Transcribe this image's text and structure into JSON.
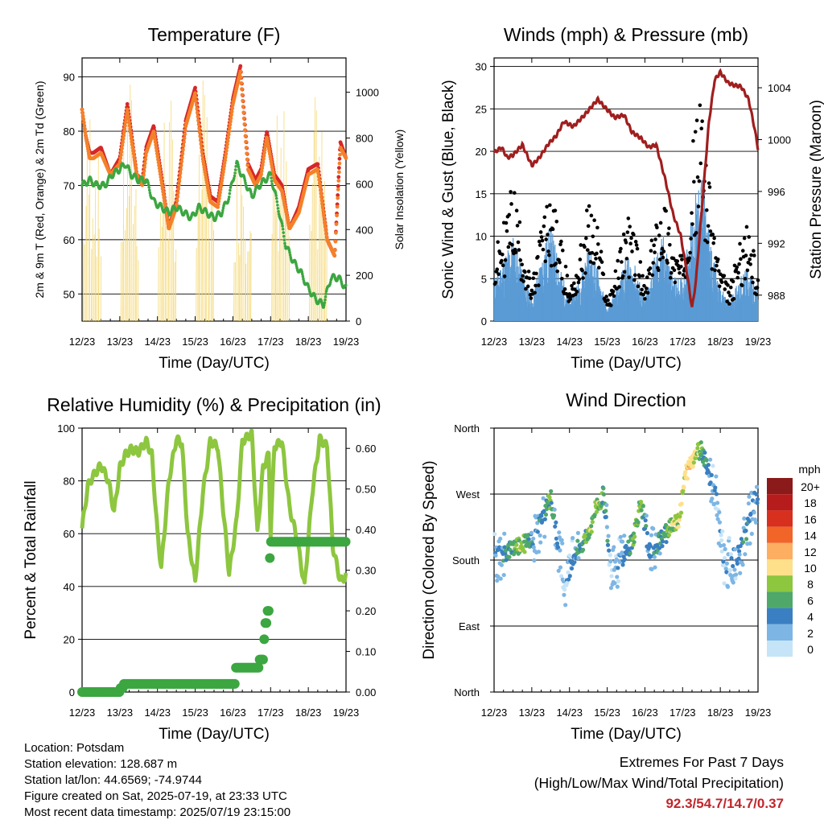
{
  "chart_data": [
    {
      "type": "line",
      "title": "Temperature (F)",
      "xlabel": "Time (Day/UTC)",
      "ylabel": "2m & 9m T (Red, Orange) & 2m Td (Green)",
      "ylabel_right": "Solar Insolation (Yellow)",
      "xticks": [
        "12/23",
        "13/23",
        "14/23",
        "15/23",
        "16/23",
        "17/23",
        "18/23",
        "19/23"
      ],
      "ylim": [
        45,
        93.5
      ],
      "yticks": [
        50,
        60,
        70,
        80,
        90
      ],
      "ylim_right": [
        0,
        1150
      ],
      "yticks_right": [
        0,
        200,
        400,
        600,
        800,
        1000
      ],
      "grid": true,
      "series": [
        {
          "color": "#d62728",
          "marker": "dots",
          "x": [
            0,
            0.1,
            0.2,
            0.3,
            0.5,
            0.75,
            1.0,
            1.2,
            1.3,
            1.45,
            1.6,
            1.7,
            1.9,
            2.1,
            2.3,
            2.5,
            2.75,
            3.0,
            3.2,
            3.4,
            3.6,
            3.8,
            4.0,
            4.2,
            4.4,
            4.6,
            4.75,
            4.9,
            5.1,
            5.3,
            5.5,
            5.75,
            6.0,
            6.25,
            6.5,
            6.7,
            6.85,
            7.0
          ],
          "values": [
            84,
            79,
            76,
            76,
            77,
            72,
            75,
            85,
            80,
            72,
            71,
            77,
            81,
            72,
            62,
            67,
            82,
            88,
            76,
            68,
            67,
            76,
            86,
            92,
            74,
            71,
            73,
            80,
            72,
            70,
            62,
            66,
            73,
            74,
            60,
            57,
            78,
            75
          ]
        },
        {
          "color": "#f4812a",
          "marker": "dots",
          "x": [
            0,
            0.1,
            0.2,
            0.3,
            0.5,
            0.75,
            1.0,
            1.2,
            1.3,
            1.45,
            1.6,
            1.7,
            1.9,
            2.1,
            2.3,
            2.5,
            2.75,
            3.0,
            3.2,
            3.4,
            3.6,
            3.8,
            4.0,
            4.2,
            4.4,
            4.6,
            4.75,
            4.9,
            5.1,
            5.3,
            5.5,
            5.75,
            6.0,
            6.25,
            6.5,
            6.7,
            6.85,
            7.0
          ],
          "values": [
            84,
            79,
            75,
            75,
            76,
            72,
            74,
            84,
            79,
            72,
            70,
            76,
            80,
            71,
            62,
            66,
            81,
            87,
            75,
            67,
            66,
            75,
            85,
            91,
            73,
            70,
            72,
            79,
            71,
            69,
            62,
            65,
            72,
            73,
            60,
            57,
            77,
            75
          ]
        },
        {
          "color": "#3ca641",
          "marker": "dots",
          "x": [
            0,
            0.2,
            0.4,
            0.6,
            0.8,
            1.0,
            1.15,
            1.3,
            1.5,
            1.7,
            1.9,
            2.1,
            2.3,
            2.5,
            2.7,
            2.9,
            3.1,
            3.3,
            3.5,
            3.7,
            3.9,
            4.1,
            4.3,
            4.5,
            4.7,
            5.0,
            5.2,
            5.4,
            5.6,
            5.8,
            6.0,
            6.2,
            6.4,
            6.6,
            6.8,
            7.0
          ],
          "values": [
            70,
            71,
            70,
            70,
            72,
            73,
            74,
            72,
            71,
            71,
            67,
            66,
            65,
            66,
            65,
            64,
            66,
            65,
            64,
            65,
            68,
            74,
            71,
            68,
            70,
            72,
            66,
            59,
            56,
            54,
            51,
            49,
            48,
            53,
            53,
            51
          ]
        }
      ]
    },
    {
      "type": "scatter",
      "title": "Winds (mph) & Pressure (mb)",
      "xlabel": "Time (Day/UTC)",
      "ylabel": "Sonic Wind & Gust (Blue, Black)",
      "ylabel_right": "Station Pressure (Maroon)",
      "xticks": [
        "12/23",
        "13/23",
        "14/23",
        "15/23",
        "16/23",
        "17/23",
        "18/23",
        "19/23"
      ],
      "ylim": [
        0,
        31
      ],
      "yticks": [
        0,
        5,
        10,
        15,
        20,
        25,
        30
      ],
      "ylim_right": [
        986.0,
        1006.3
      ],
      "yticks_right": [
        988,
        992,
        996,
        1000,
        1004
      ],
      "grid": true,
      "series": [
        {
          "color": "#5b9bd5",
          "marker": "bars",
          "x": [
            0,
            0.25,
            0.5,
            0.75,
            1.0,
            1.25,
            1.5,
            1.75,
            2.0,
            2.25,
            2.5,
            2.75,
            3.0,
            3.25,
            3.5,
            3.75,
            4.0,
            4.25,
            4.5,
            4.75,
            5.0,
            5.25,
            5.5,
            5.75,
            6.0,
            6.25,
            6.5,
            6.75,
            7.0
          ],
          "values": [
            4,
            6,
            8,
            5,
            2,
            6,
            9,
            5,
            2,
            4,
            7,
            5,
            1,
            3,
            6,
            5,
            2,
            6,
            8,
            4,
            4,
            10,
            14,
            7,
            3,
            2,
            4,
            5,
            3
          ]
        },
        {
          "color": "#000000",
          "marker": "dots",
          "x": [
            0,
            0.25,
            0.5,
            0.75,
            1.0,
            1.25,
            1.5,
            1.75,
            2.0,
            2.25,
            2.5,
            2.75,
            3.0,
            3.25,
            3.5,
            3.75,
            4.0,
            4.25,
            4.5,
            4.75,
            5.0,
            5.25,
            5.5,
            5.75,
            6.0,
            6.25,
            6.5,
            6.75,
            7.0
          ],
          "values": [
            6,
            9,
            13,
            8,
            3,
            9,
            12,
            8,
            3,
            6,
            11,
            9,
            2,
            5,
            10,
            8,
            3,
            9,
            12,
            7,
            6,
            16,
            21,
            11,
            5,
            3,
            7,
            9,
            4
          ]
        },
        {
          "color": "#a01e1e",
          "marker": "line",
          "axis": "right",
          "x": [
            0,
            0.2,
            0.35,
            0.5,
            0.75,
            1.0,
            1.2,
            1.45,
            1.65,
            1.85,
            2.1,
            2.4,
            2.75,
            3.0,
            3.2,
            3.45,
            3.65,
            3.9,
            4.1,
            4.3,
            4.55,
            4.75,
            4.95,
            5.1,
            5.25,
            5.35,
            5.5,
            5.7,
            5.85,
            6.0,
            6.2,
            6.35,
            6.55,
            6.75,
            6.9,
            7.0
          ],
          "values": [
            999.0,
            999.4,
            998.6,
            998.8,
            999.6,
            998.0,
            998.6,
            999.7,
            1000.3,
            1001.4,
            1001.0,
            1001.9,
            1003.1,
            1002.3,
            1001.7,
            1001.9,
            1000.6,
            1000.1,
            999.4,
            999.6,
            996.8,
            994.2,
            992.6,
            990.0,
            987.0,
            989.0,
            994.3,
            1001.4,
            1004.6,
            1005.2,
            1004.4,
            1004.2,
            1004.1,
            1003.1,
            1001.0,
            999.3
          ]
        }
      ]
    },
    {
      "type": "line",
      "title": "Relative Humidity (%) & Precipitation (in)",
      "xlabel": "Time (Day/UTC)",
      "ylabel": "Percent & Total Rainfall",
      "xticks": [
        "12/23",
        "13/23",
        "14/23",
        "15/23",
        "16/23",
        "17/23",
        "18/23",
        "19/23"
      ],
      "ylim": [
        0,
        100
      ],
      "yticks": [
        0,
        20,
        40,
        60,
        80,
        100
      ],
      "ylim_right": [
        0,
        0.65
      ],
      "yticks_right": [
        0.0,
        0.1,
        0.2,
        0.3,
        0.4,
        0.5,
        0.6
      ],
      "grid": true,
      "series": [
        {
          "color": "#8dc63f",
          "marker": "line",
          "x": [
            0,
            0.15,
            0.3,
            0.5,
            0.7,
            0.85,
            1.0,
            1.15,
            1.3,
            1.5,
            1.7,
            1.85,
            2.0,
            2.1,
            2.3,
            2.5,
            2.65,
            2.8,
            3.0,
            3.2,
            3.4,
            3.6,
            3.75,
            3.9,
            4.1,
            4.25,
            4.5,
            4.65,
            4.8,
            4.95,
            5.0,
            5.1,
            5.3,
            5.5,
            5.7,
            5.9,
            6.1,
            6.3,
            6.5,
            6.65,
            6.85,
            7.0
          ],
          "values": [
            62,
            78,
            82,
            86,
            80,
            68,
            85,
            90,
            92,
            91,
            95,
            90,
            60,
            47,
            80,
            96,
            94,
            60,
            42,
            75,
            95,
            93,
            68,
            45,
            65,
            95,
            98,
            60,
            85,
            90,
            60,
            93,
            95,
            70,
            58,
            40,
            75,
            96,
            93,
            55,
            42,
            44
          ]
        },
        {
          "color": "#3ca641",
          "marker": "dots",
          "axis": "right",
          "x": [
            0,
            0.9,
            1.0,
            1.1,
            4.0,
            4.05,
            4.6,
            4.7,
            4.8,
            4.85,
            4.9,
            4.95,
            5.0,
            5.1,
            6.0,
            7.0
          ],
          "values": [
            0.0,
            0.0,
            0.01,
            0.02,
            0.02,
            0.06,
            0.06,
            0.08,
            0.13,
            0.17,
            0.2,
            0.33,
            0.37,
            0.37,
            0.37,
            0.37
          ]
        }
      ]
    },
    {
      "type": "scatter",
      "title": "Wind Direction",
      "xlabel": "Time (Day/UTC)",
      "ylabel": "Direction (Colored By Speed)",
      "xticks": [
        "12/23",
        "13/23",
        "14/23",
        "15/23",
        "16/23",
        "17/23",
        "18/23",
        "19/23"
      ],
      "ylim": [
        0,
        360
      ],
      "yticks": [
        "North",
        "East",
        "South",
        "West",
        "North"
      ],
      "grid": true,
      "legend": {
        "title": "mph",
        "placement": "right",
        "labels": [
          "20+",
          "18",
          "16",
          "14",
          "12",
          "10",
          "8",
          "6",
          "4",
          "2",
          "0"
        ],
        "colors": [
          "#8b1a1a",
          "#b71c1c",
          "#d7301f",
          "#f16529",
          "#fdae61",
          "#fee08b",
          "#8dc63f",
          "#4fa86a",
          "#3a7fc1",
          "#7db6e4",
          "#c6e4f7"
        ]
      },
      "series": [
        {
          "x": [
            0.1,
            0.3,
            0.5,
            0.7,
            0.9,
            1.1,
            1.3,
            1.5,
            1.7,
            1.9,
            2.1,
            2.3,
            2.5,
            2.7,
            2.9,
            3.1,
            3.3,
            3.5,
            3.7,
            3.9,
            4.1,
            4.3,
            4.5,
            4.7,
            4.9,
            5.1,
            5.3,
            5.5,
            5.7,
            5.9,
            6.1,
            6.3,
            6.5,
            6.7,
            6.9
          ],
          "values": [
            185,
            188,
            195,
            200,
            205,
            215,
            240,
            265,
            200,
            150,
            185,
            200,
            215,
            250,
            270,
            170,
            175,
            190,
            210,
            260,
            195,
            200,
            210,
            230,
            235,
            300,
            320,
            330,
            300,
            260,
            170,
            180,
            190,
            220,
            260
          ],
          "speeds": [
            2,
            4,
            6,
            8,
            6,
            3,
            4,
            6,
            2,
            1,
            3,
            5,
            7,
            8,
            6,
            1,
            2,
            4,
            6,
            7,
            2,
            4,
            5,
            7,
            9,
            10,
            9,
            6,
            4,
            2,
            1,
            2,
            3,
            4,
            3
          ]
        }
      ]
    }
  ],
  "footer": {
    "location": "Location: Potsdam",
    "elevation": "Station elevation: 128.687 m",
    "latlon": "Station lat/lon: 44.6569; -74.9744",
    "created": "Figure created on Sat, 2025-07-19, at 23:33 UTC",
    "recent": "Most recent data timestamp: 2025/07/19 23:15:00"
  },
  "extremes": {
    "title": "Extremes For Past 7 Days",
    "subtitle": "(High/Low/Max Wind/Total Precipitation)",
    "values": "92.3/54.7/14.7/0.37",
    "color": "#c0262c"
  }
}
